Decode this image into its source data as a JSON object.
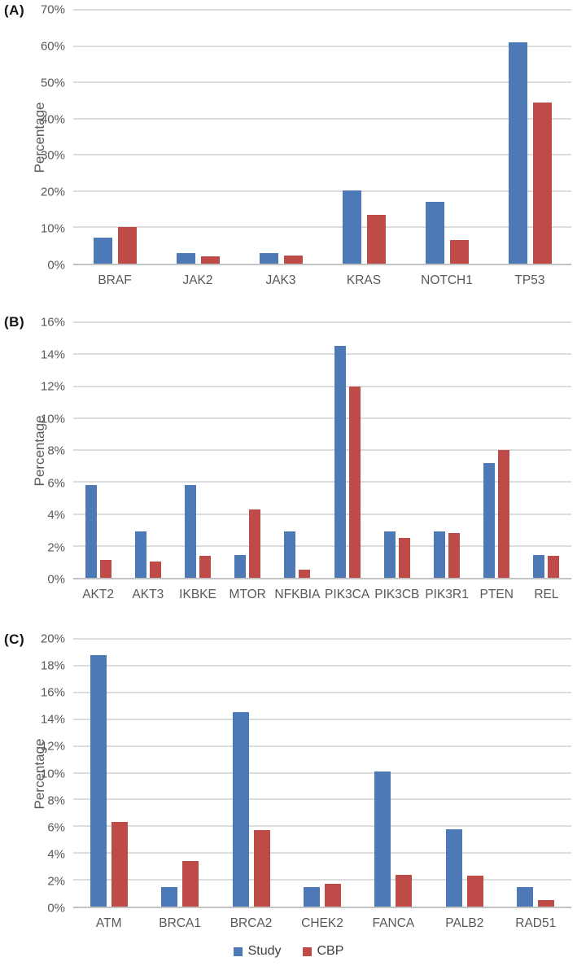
{
  "figure": {
    "description": "Three stacked grouped bar charts comparing mutation percentages between Study and CBP cohorts",
    "background": "#ffffff"
  },
  "legend": {
    "position": "bottom-center",
    "items": [
      {
        "label": "Study",
        "color": "#4e79b7"
      },
      {
        "label": "CBP",
        "color": "#be4b48"
      }
    ]
  },
  "chart_data": [
    {
      "type": "bar",
      "panel_label": "(A)",
      "ylabel": "Percentage",
      "ylim": [
        0,
        70
      ],
      "ytick_step": 10,
      "tick_format": "percent",
      "grid": true,
      "categories": [
        "BRAF",
        "JAK2",
        "JAK3",
        "KRAS",
        "NOTCH1",
        "TP53"
      ],
      "series": [
        {
          "name": "Study",
          "color": "#4e79b7",
          "values": [
            7.2,
            2.9,
            2.9,
            20.3,
            17.0,
            61.0
          ]
        },
        {
          "name": "CBP",
          "color": "#be4b48",
          "values": [
            10.0,
            2.0,
            2.3,
            13.5,
            6.5,
            44.4
          ]
        }
      ]
    },
    {
      "type": "bar",
      "panel_label": "(B)",
      "ylabel": "Percentage",
      "ylim": [
        0,
        16
      ],
      "ytick_step": 2,
      "tick_format": "percent",
      "grid": true,
      "categories": [
        "AKT2",
        "AKT3",
        "IKBKE",
        "MTOR",
        "NFKBIA",
        "PIK3CA",
        "PIK3CB",
        "PIK3R1",
        "PTEN",
        "REL"
      ],
      "series": [
        {
          "name": "Study",
          "color": "#4e79b7",
          "values": [
            5.8,
            2.9,
            5.8,
            1.45,
            2.9,
            14.5,
            2.9,
            2.9,
            7.2,
            1.45
          ]
        },
        {
          "name": "CBP",
          "color": "#be4b48",
          "values": [
            1.1,
            1.0,
            1.4,
            4.3,
            0.5,
            12.0,
            2.5,
            2.8,
            8.0,
            1.4
          ]
        }
      ]
    },
    {
      "type": "bar",
      "panel_label": "(C)",
      "ylabel": "Percentage",
      "ylim": [
        0,
        20
      ],
      "ytick_step": 2,
      "tick_format": "percent",
      "grid": true,
      "categories": [
        "ATM",
        "BRCA1",
        "BRCA2",
        "CHEK2",
        "FANCA",
        "PALB2",
        "RAD51"
      ],
      "series": [
        {
          "name": "Study",
          "color": "#4e79b7",
          "values": [
            18.8,
            1.45,
            14.5,
            1.45,
            10.1,
            5.8,
            1.45
          ]
        },
        {
          "name": "CBP",
          "color": "#be4b48",
          "values": [
            6.3,
            3.4,
            5.7,
            1.7,
            2.4,
            2.3,
            0.5
          ]
        }
      ]
    }
  ]
}
